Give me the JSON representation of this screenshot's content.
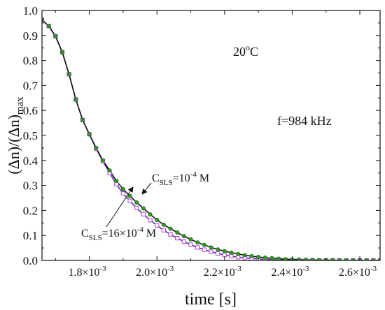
{
  "chart_data": {
    "type": "line",
    "xlabel": "time [s]",
    "ylabel": {
      "base": "(Δn)/(Δn)",
      "sub": "max"
    },
    "xlim": [
      0.00166,
      0.00266
    ],
    "ylim": [
      0,
      1.0
    ],
    "x_ticks": [
      {
        "value": 0.0018,
        "mant": "1.8×10",
        "exp": "-3"
      },
      {
        "value": 0.002,
        "mant": "2.0×10",
        "exp": "-3"
      },
      {
        "value": 0.0022,
        "mant": "2.2×10",
        "exp": "-3"
      },
      {
        "value": 0.0024,
        "mant": "2.4×10",
        "exp": "-3"
      },
      {
        "value": 0.0026,
        "mant": "2.6×10",
        "exp": "-3"
      }
    ],
    "y_ticks": [
      "0.0",
      "0.1",
      "0.2",
      "0.3",
      "0.4",
      "0.5",
      "0.6",
      "0.7",
      "0.8",
      "0.9",
      "1.0"
    ],
    "grid": false,
    "annotations": {
      "temperature": {
        "base": "20",
        "sup": "o",
        "rest": "C"
      },
      "frequency": "f=984 kHz",
      "label_a": {
        "pre": "C",
        "sub": "SLS",
        "mid": "=10",
        "sup": "-4",
        "post": " M"
      },
      "label_b": {
        "pre": "C",
        "sub": "SLS",
        "post": "=16×10",
        "sup": "-4",
        "tail": " M"
      }
    },
    "series": [
      {
        "marker": "circle",
        "color": "#2e9b1f",
        "fit_color": "#111111",
        "x": [
          0.00166,
          0.00168,
          0.0017,
          0.00172,
          0.00174,
          0.00176,
          0.00178,
          0.0018,
          0.00182,
          0.00184,
          0.00186,
          0.00188,
          0.0019,
          0.00192,
          0.00194,
          0.00196,
          0.00198,
          0.002,
          0.00202,
          0.00204,
          0.00206,
          0.00208,
          0.0021,
          0.00212,
          0.00214,
          0.00216,
          0.00218,
          0.0022,
          0.00222,
          0.00224,
          0.00226,
          0.00228,
          0.0023,
          0.00232,
          0.00234,
          0.00236,
          0.00238,
          0.0024,
          0.00242,
          0.00244,
          0.00246,
          0.00248,
          0.0025,
          0.00252,
          0.00254,
          0.00256,
          0.00258,
          0.0026,
          0.00262,
          0.00264,
          0.00266
        ],
        "y": [
          0.962,
          0.938,
          0.897,
          0.833,
          0.745,
          0.644,
          0.562,
          0.505,
          0.45,
          0.4,
          0.36,
          0.318,
          0.285,
          0.258,
          0.232,
          0.208,
          0.184,
          0.162,
          0.143,
          0.127,
          0.112,
          0.097,
          0.084,
          0.072,
          0.062,
          0.052,
          0.044,
          0.037,
          0.031,
          0.026,
          0.021,
          0.017,
          0.014,
          0.011,
          0.009,
          0.007,
          0.005,
          0.004,
          0.003,
          0.002,
          0.002,
          0.001,
          0.001,
          0.001,
          0.0,
          0.0,
          0.0,
          0.0,
          0.0,
          0.0,
          0.0
        ]
      },
      {
        "marker": "square",
        "color": "#b040d8",
        "fit_color": "#5a2ab8",
        "x": [
          0.00166,
          0.00168,
          0.0017,
          0.00172,
          0.00174,
          0.00176,
          0.00178,
          0.0018,
          0.00182,
          0.00184,
          0.00186,
          0.00188,
          0.0019,
          0.00192,
          0.00194,
          0.00196,
          0.00198,
          0.002,
          0.00202,
          0.00204,
          0.00206,
          0.00208,
          0.0021,
          0.00212,
          0.00214,
          0.00216,
          0.00218,
          0.0022,
          0.00222,
          0.00224,
          0.00226,
          0.00228,
          0.0023,
          0.00232,
          0.00234,
          0.00236,
          0.00238,
          0.0024,
          0.00242,
          0.00244,
          0.00246,
          0.00248,
          0.0025,
          0.00252,
          0.00254,
          0.00256,
          0.00258,
          0.0026,
          0.00262,
          0.00264,
          0.00266
        ],
        "y": [
          0.962,
          0.938,
          0.897,
          0.833,
          0.745,
          0.644,
          0.562,
          0.505,
          0.447,
          0.397,
          0.35,
          0.305,
          0.268,
          0.238,
          0.21,
          0.185,
          0.161,
          0.14,
          0.121,
          0.104,
          0.089,
          0.075,
          0.063,
          0.052,
          0.043,
          0.035,
          0.028,
          0.022,
          0.017,
          0.013,
          0.01,
          0.008,
          0.006,
          0.004,
          0.003,
          0.002,
          0.002,
          0.001,
          0.001,
          0.001,
          0.0,
          0.0,
          0.0,
          0.0,
          0.0,
          0.0,
          0.0,
          0.0,
          0.0,
          0.0,
          0.0
        ]
      }
    ]
  }
}
